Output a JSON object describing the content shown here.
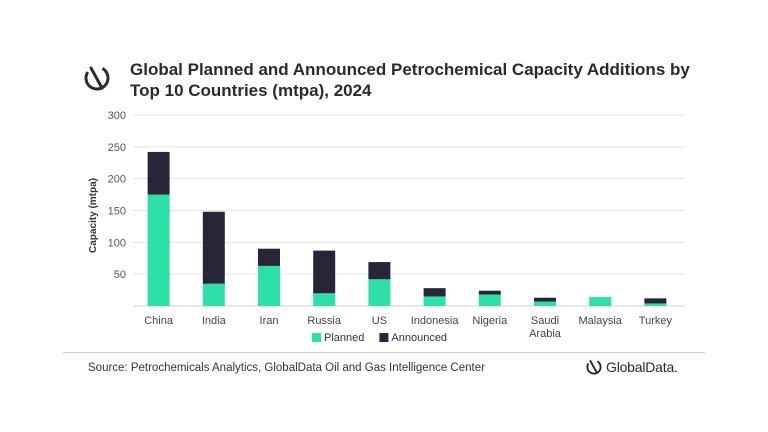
{
  "title": "Global Planned and Announced Petrochemical Capacity Additions by Top 10 Countries (mtpa), 2024",
  "source": "Source: Petrochemicals Analytics, GlobalData Oil and Gas Intelligence Center",
  "brand": "GlobalData.",
  "icons": {
    "logo": "globaldata-logo-icon"
  },
  "colors": {
    "planned": "#2de0a7",
    "announced": "#272537",
    "grid": "#e3e3e3",
    "tick": "#555555"
  },
  "chart_data": {
    "type": "bar",
    "stacked": true,
    "categories": [
      "China",
      "India",
      "Iran",
      "Russia",
      "US",
      "Indonesia",
      "Nigeria",
      "Saudi Arabia",
      "Malaysia",
      "Turkey"
    ],
    "series": [
      {
        "name": "Planned",
        "values": [
          175,
          35,
          63,
          20,
          42,
          15,
          18,
          7,
          14,
          4
        ]
      },
      {
        "name": "Announced",
        "values": [
          67,
          113,
          27,
          67,
          27,
          13,
          6,
          6,
          0,
          8
        ]
      }
    ],
    "xlabel": "",
    "ylabel": "Capacity (mtpa)",
    "ylim": [
      0,
      300
    ],
    "yticks": [
      50,
      100,
      150,
      200,
      250,
      300
    ],
    "grid": true,
    "legend": "bottom-left"
  }
}
